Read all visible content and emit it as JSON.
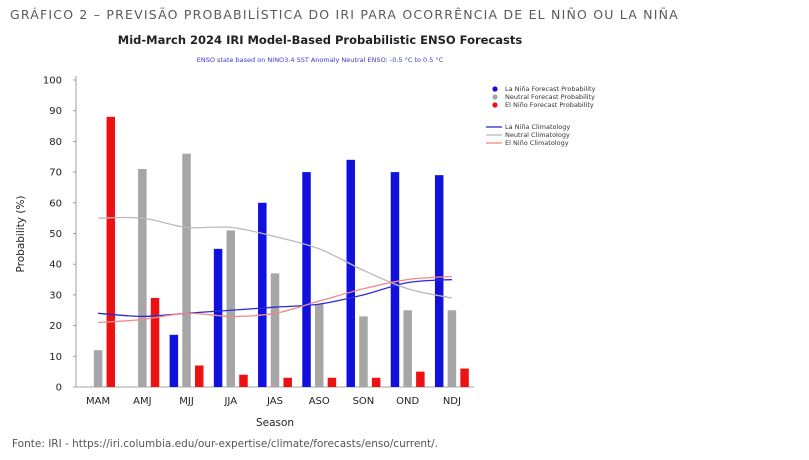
{
  "heading": "GRÁFICO 2 – PREVISÃO PROBABILÍSTICA DO IRI PARA OCORRÊNCIA DE EL NIÑO OU LA NIÑA",
  "source": "Fonte: IRI - https://iri.columbia.edu/our-expertise/climate/forecasts/enso/current/.",
  "chart_data": {
    "type": "bar",
    "title": "Mid-March 2024 IRI Model-Based Probabilistic ENSO Forecasts",
    "subtitle": "ENSO state based on NINO3.4 SST Anomaly Neutral ENSO: -0.5 °C to 0.5 °C",
    "xlabel": "Season",
    "ylabel": "Probability (%)",
    "ylim": [
      0,
      100
    ],
    "yticks": [
      "0",
      "10",
      "20",
      "30",
      "40",
      "50",
      "60",
      "70",
      "80",
      "90",
      "100"
    ],
    "grid": false,
    "legend_position": "right",
    "categories": [
      "MAM",
      "AMJ",
      "MJJ",
      "JJA",
      "JAS",
      "ASO",
      "SON",
      "OND",
      "NDJ"
    ],
    "series": [
      {
        "name": "La Niña Forecast Probability",
        "kind": "bar",
        "color": "#1111dd",
        "values": [
          0,
          0,
          17,
          45,
          60,
          70,
          74,
          70,
          69
        ]
      },
      {
        "name": "Neutral Forecast Probability",
        "kind": "bar",
        "color": "#a6a6a6",
        "values": [
          12,
          71,
          76,
          51,
          37,
          27,
          23,
          25,
          25
        ]
      },
      {
        "name": "El Niño Forecast Probability",
        "kind": "bar",
        "color": "#ee1111",
        "values": [
          88,
          29,
          7,
          4,
          3,
          3,
          3,
          5,
          6
        ]
      },
      {
        "name": "La Niña Climatology",
        "kind": "line",
        "color": "#2b2bd6",
        "values": [
          24,
          23,
          24,
          25,
          26,
          27,
          30,
          34,
          35
        ]
      },
      {
        "name": "Neutral Climatology",
        "kind": "line",
        "color": "#b9b9b9",
        "values": [
          55,
          55,
          52,
          52,
          49,
          45,
          38,
          32,
          29
        ]
      },
      {
        "name": "El Niño Climatology",
        "kind": "line",
        "color": "#f08a8a",
        "values": [
          21,
          22,
          24,
          23,
          24,
          28,
          32,
          35,
          36
        ]
      }
    ]
  }
}
